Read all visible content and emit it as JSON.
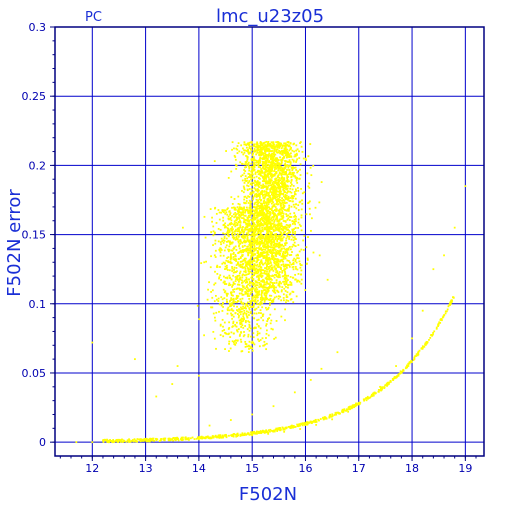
{
  "chart_data": {
    "type": "scatter",
    "title": "lmc_u23z05",
    "corner_label": "PC",
    "xlabel": "F502N",
    "ylabel": "F502N error",
    "xlim": [
      11.3,
      19.35
    ],
    "ylim": [
      -0.01,
      0.3
    ],
    "xticks": [
      "12",
      "13",
      "14",
      "15",
      "16",
      "17",
      "18",
      "19"
    ],
    "yticks": [
      "0",
      "0.05",
      "0.1",
      "0.15",
      "0.2",
      "0.25",
      "0.3"
    ],
    "grid": true,
    "colors": {
      "points": "#ffff00",
      "grid": "#0000cc",
      "axes": "#000080",
      "ticks": "#0000b0",
      "labels": "#1a2fd6"
    },
    "series": [
      {
        "points": [
          [
            11.7,
            0.0
          ],
          [
            12.0,
            0.0
          ],
          [
            12.3,
            0.0005
          ],
          [
            12.6,
            0.0008
          ],
          [
            12.9,
            0.0012
          ],
          [
            13.2,
            0.0015
          ],
          [
            13.5,
            0.002
          ],
          [
            13.8,
            0.0025
          ],
          [
            14.1,
            0.003
          ],
          [
            14.4,
            0.0035
          ],
          [
            14.7,
            0.004
          ],
          [
            15.0,
            0.005
          ],
          [
            15.3,
            0.006
          ],
          [
            15.6,
            0.0075
          ],
          [
            15.9,
            0.0095
          ],
          [
            16.2,
            0.0125
          ],
          [
            16.5,
            0.0165
          ],
          [
            16.8,
            0.022
          ],
          [
            17.1,
            0.03
          ],
          [
            17.4,
            0.04
          ],
          [
            17.7,
            0.055
          ],
          [
            18.0,
            0.075
          ],
          [
            18.2,
            0.095
          ],
          [
            18.4,
            0.125
          ],
          [
            18.6,
            0.135
          ],
          [
            18.8,
            0.155
          ],
          [
            19.0,
            0.185
          ],
          [
            14.2,
            0.012
          ],
          [
            14.6,
            0.016
          ],
          [
            15.0,
            0.02
          ],
          [
            15.4,
            0.026
          ],
          [
            15.8,
            0.036
          ],
          [
            16.1,
            0.045
          ],
          [
            16.3,
            0.053
          ],
          [
            16.6,
            0.065
          ],
          [
            12.0,
            0.072
          ],
          [
            12.8,
            0.06
          ],
          [
            13.2,
            0.033
          ],
          [
            13.5,
            0.042
          ],
          [
            14.0,
            0.048
          ],
          [
            13.6,
            0.055
          ],
          [
            14.3,
            0.09
          ],
          [
            14.1,
            0.13
          ],
          [
            13.7,
            0.155
          ]
        ]
      }
    ],
    "clusters": [
      {
        "x_mean": 15.35,
        "x_sd": 0.28,
        "y_min": 0.1,
        "y_max": 0.217,
        "n": 2600
      },
      {
        "x_mean": 14.9,
        "x_sd": 0.3,
        "y_min": 0.065,
        "y_max": 0.17,
        "n": 1300
      }
    ]
  }
}
